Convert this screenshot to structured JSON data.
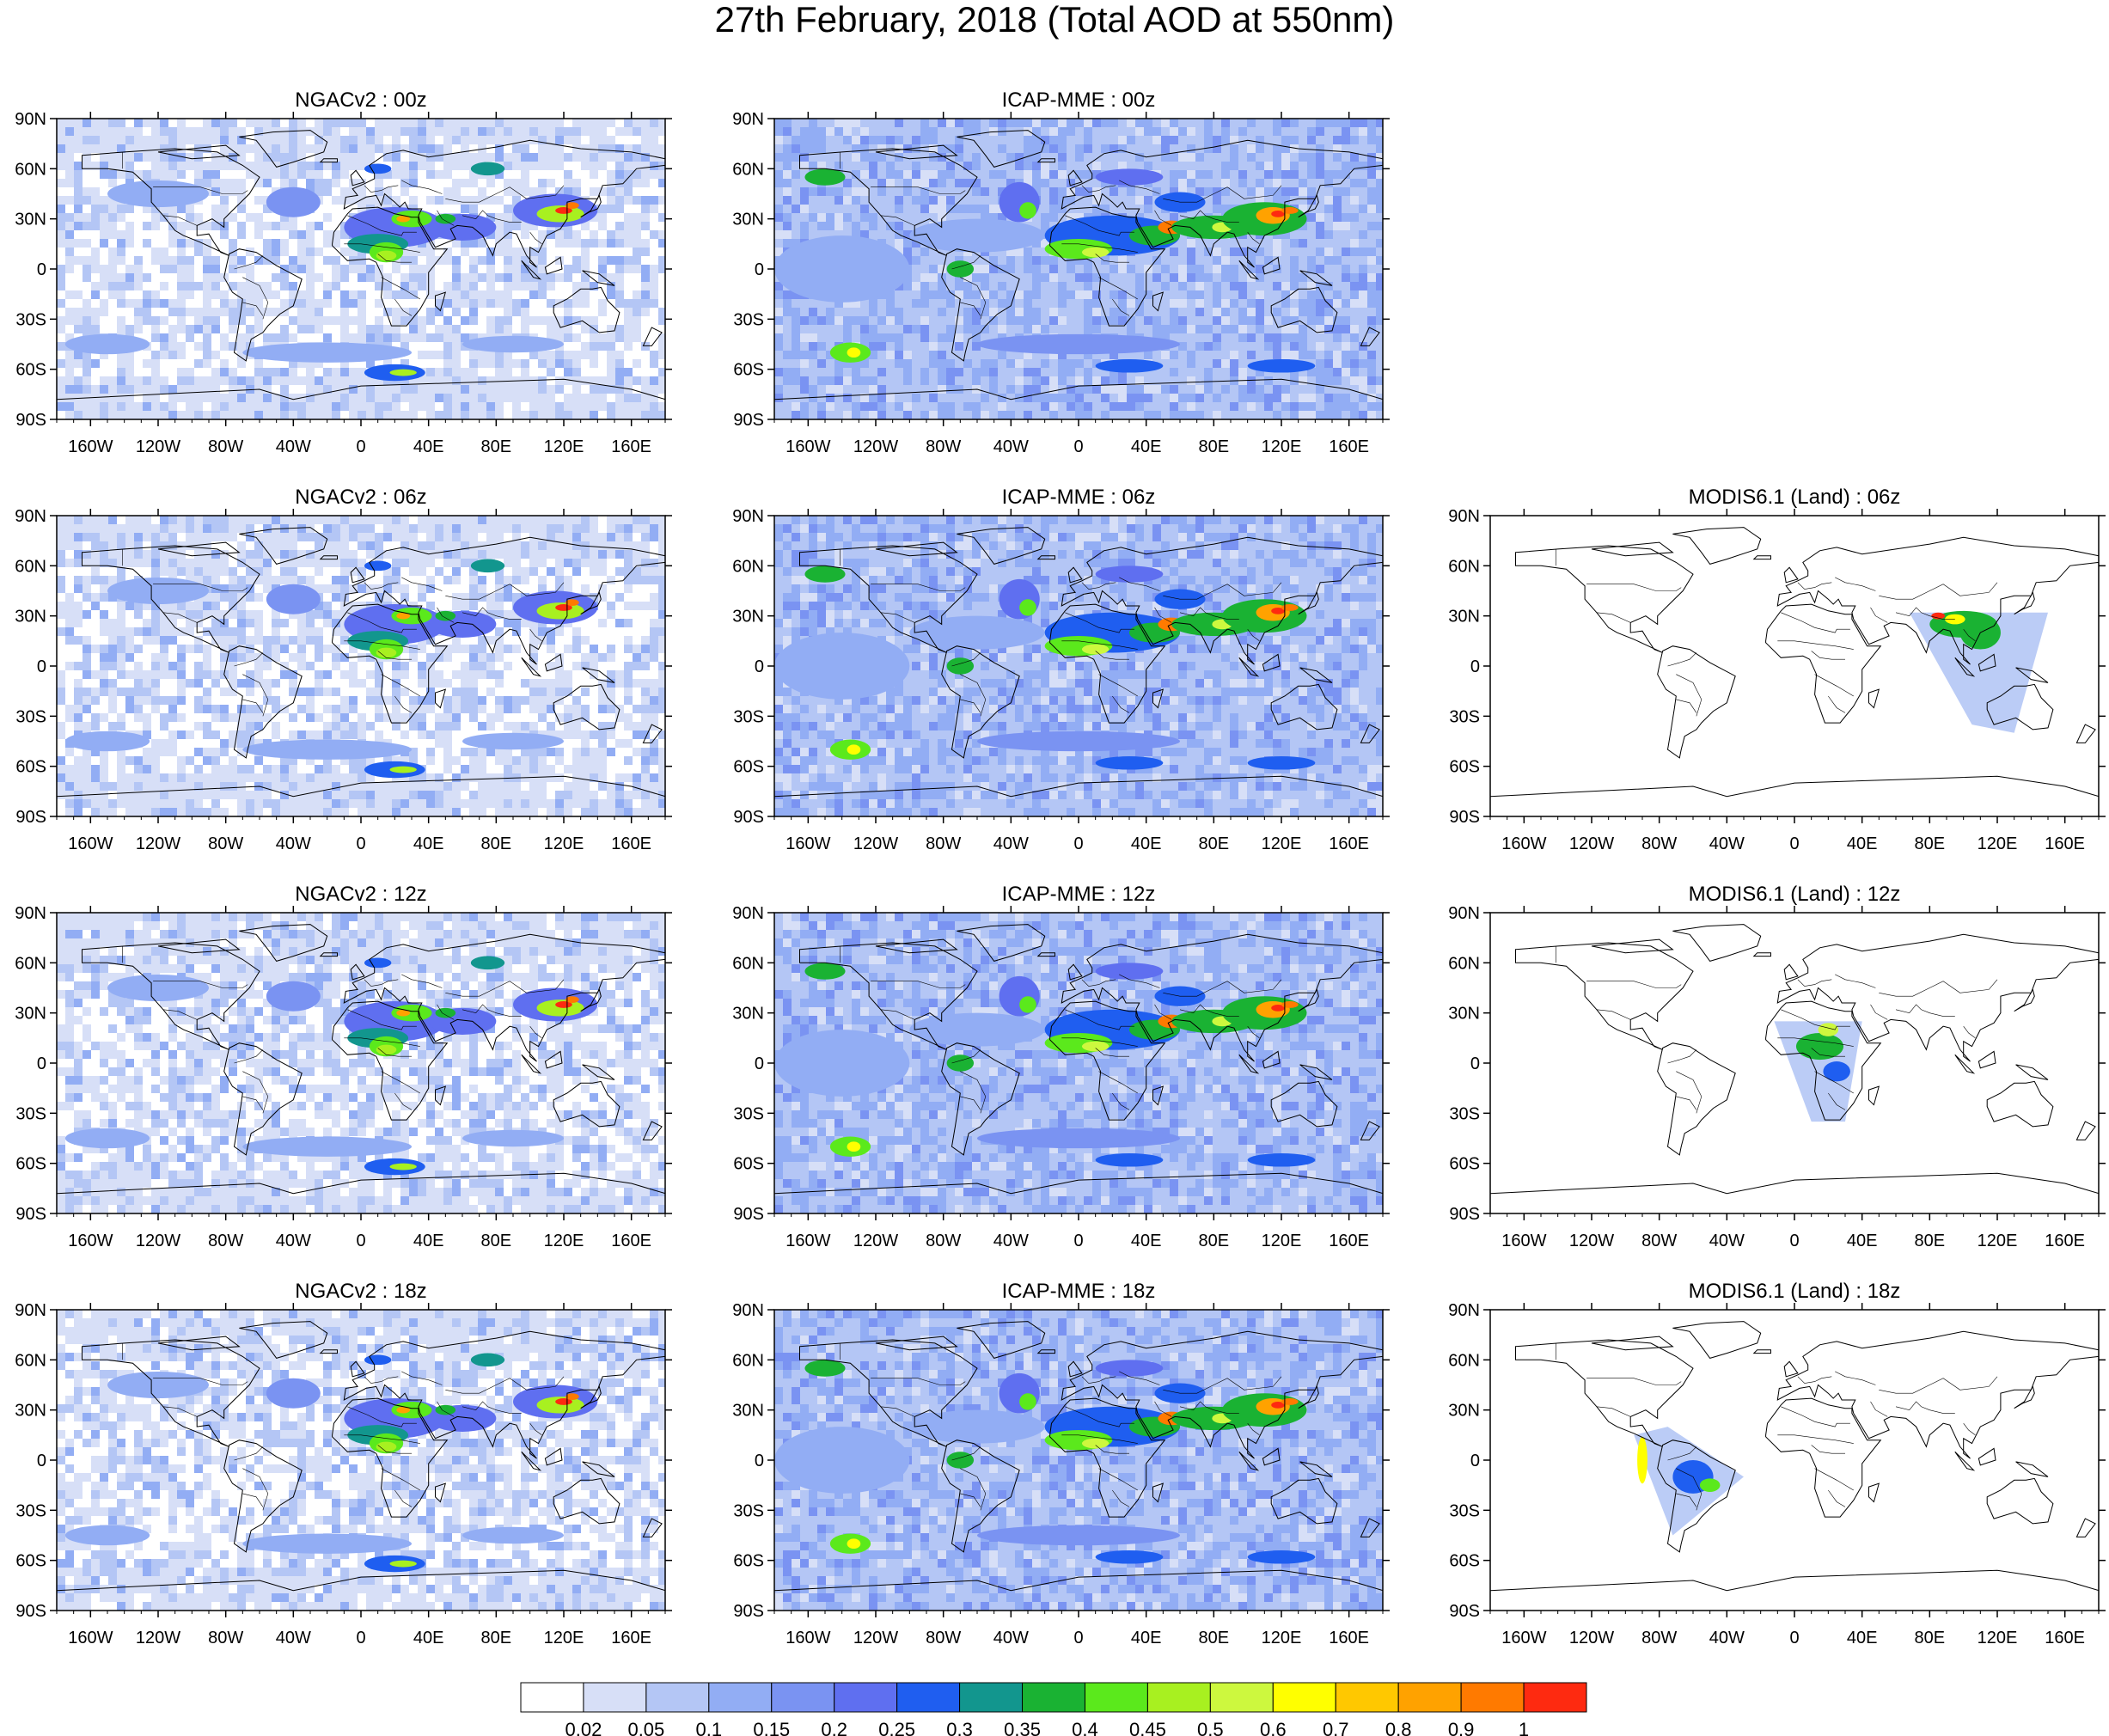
{
  "title": "27th February, 2018 (Total AOD at 550nm)",
  "lat_ticks": [
    "90N",
    "60N",
    "30N",
    "0",
    "30S",
    "60S",
    "90S"
  ],
  "lon_ticks": [
    "160W",
    "120W",
    "80W",
    "40W",
    "0",
    "40E",
    "80E",
    "120E",
    "160E"
  ],
  "panels": [
    {
      "row": 0,
      "col": 0,
      "title": "NGACv2 : 00z",
      "model": "ngac",
      "coverage": "global"
    },
    {
      "row": 0,
      "col": 1,
      "title": "ICAP-MME : 00z",
      "model": "icap",
      "coverage": "global"
    },
    {
      "row": 1,
      "col": 0,
      "title": "NGACv2 : 06z",
      "model": "ngac",
      "coverage": "global"
    },
    {
      "row": 1,
      "col": 1,
      "title": "ICAP-MME : 06z",
      "model": "icap",
      "coverage": "global"
    },
    {
      "row": 1,
      "col": 2,
      "title": "MODIS6.1 (Land) : 06z",
      "model": "modis",
      "coverage": "east-asia"
    },
    {
      "row": 2,
      "col": 0,
      "title": "NGACv2 : 12z",
      "model": "ngac",
      "coverage": "global"
    },
    {
      "row": 2,
      "col": 1,
      "title": "ICAP-MME : 12z",
      "model": "icap",
      "coverage": "global"
    },
    {
      "row": 2,
      "col": 2,
      "title": "MODIS6.1 (Land) : 12z",
      "model": "modis",
      "coverage": "africa"
    },
    {
      "row": 3,
      "col": 0,
      "title": "NGACv2 : 18z",
      "model": "ngac",
      "coverage": "global"
    },
    {
      "row": 3,
      "col": 1,
      "title": "ICAP-MME : 18z",
      "model": "icap",
      "coverage": "global"
    },
    {
      "row": 3,
      "col": 2,
      "title": "MODIS6.1 (Land) : 18z",
      "model": "modis",
      "coverage": "south-america"
    }
  ],
  "colorbar": {
    "colors": [
      "#ffffff",
      "#d7dff7",
      "#b4c6f5",
      "#92adf4",
      "#7a93f2",
      "#5f6ff0",
      "#1f5ef0",
      "#12968e",
      "#1ab233",
      "#5be91c",
      "#a8f020",
      "#cdf83e",
      "#ffff00",
      "#ffc800",
      "#ffa200",
      "#ff7a00",
      "#fe2a10"
    ],
    "labels": [
      "0.02",
      "0.05",
      "0.1",
      "0.15",
      "0.2",
      "0.25",
      "0.3",
      "0.35",
      "0.4",
      "0.45",
      "0.5",
      "0.6",
      "0.7",
      "0.8",
      "0.9",
      "1"
    ]
  }
}
